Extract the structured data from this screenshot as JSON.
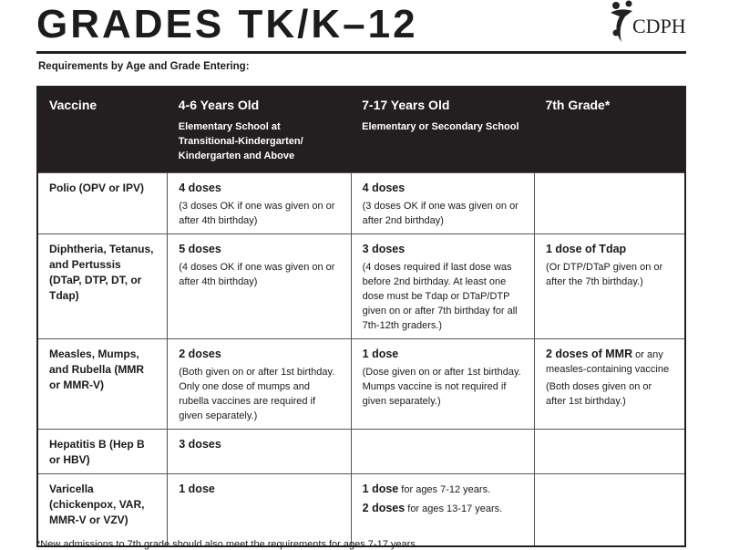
{
  "title": "GRADES TK/K–12",
  "logo_text": "CDPH",
  "subtitle": "Requirements by Age and Grade Entering:",
  "columns": [
    {
      "heading": "Vaccine",
      "sub": ""
    },
    {
      "heading": "4-6 Years Old",
      "sub": "Elementary School at Transitional-Kindergarten/ Kindergarten and Above"
    },
    {
      "heading": "7-17 Years Old",
      "sub": "Elementary or Secondary School"
    },
    {
      "heading": "7th Grade*",
      "sub": ""
    }
  ],
  "rows": [
    {
      "vaccine": "Polio (OPV or IPV)",
      "c1": {
        "dose": "4 doses",
        "note": "(3 doses OK if one was given on or after 4th birthday)"
      },
      "c2": {
        "dose": "4 doses",
        "note": "(3 doses OK if one was given on or after 2nd birthday)"
      },
      "c3": {
        "dose": "",
        "note": ""
      }
    },
    {
      "vaccine": "Diphtheria, Tetanus, and Pertussis (DTaP, DTP, DT, or Tdap)",
      "c1": {
        "dose": "5 doses",
        "note": "(4 doses OK if one was given on or after 4th birthday)"
      },
      "c2": {
        "dose": "3 doses",
        "note": "(4 doses required if last dose was before 2nd birthday. At least one dose must be Tdap or DTaP/DTP given on or after 7th birthday for all 7th-12th graders.)"
      },
      "c3": {
        "dose": "1 dose  of Tdap",
        "note": "(Or DTP/DTaP given on or after the 7th birthday.)"
      }
    },
    {
      "vaccine": "Measles, Mumps, and Rubella (MMR or MMR-V)",
      "c1": {
        "dose": "2 doses",
        "note": "(Both given on or after 1st birthday. Only one dose of mumps and rubella vaccines are required if given separately.)"
      },
      "c2": {
        "dose": "1 dose",
        "note": "(Dose given on or after 1st birthday. Mumps vaccine is not required if given separately.)"
      },
      "c3": {
        "dose": "2 doses of MMR",
        "dose_suffix": " or any measles-containing vaccine",
        "note": "(Both doses given on or after 1st birthday.)"
      }
    },
    {
      "vaccine": "Hepatitis B (Hep B or HBV)",
      "c1": {
        "dose": "3 doses",
        "note": ""
      },
      "c2": {
        "dose": "",
        "note": ""
      },
      "c3": {
        "dose": "",
        "note": ""
      }
    },
    {
      "vaccine": "Varicella (chickenpox, VAR, MMR-V or VZV)",
      "c1": {
        "dose": "1 dose",
        "note": ""
      },
      "c2": {
        "line1_dose": "1 dose",
        "line1_text": " for ages 7-12 years.",
        "line2_dose": "2 doses",
        "line2_text": " for ages 13-17 years."
      },
      "c3": {
        "dose": "",
        "note": ""
      }
    }
  ],
  "footnote": "*New admissions to 7th grade should also meet the requirements for ages 7-17 years."
}
